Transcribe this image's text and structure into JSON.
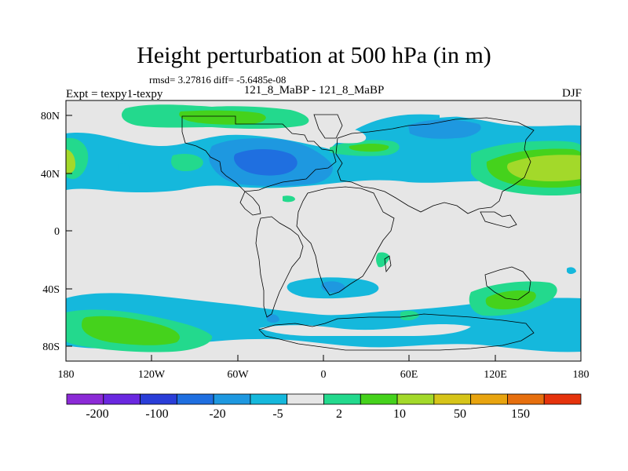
{
  "plot": {
    "title": "Height perturbation at 500 hPa (in m)",
    "stats_line": "rmsd= 3.27816 diff= -5.6485e-08",
    "left_label": "Expt = texpy1-texpy",
    "center_label": "121_8_MaBP - 121_8_MaBP",
    "right_label": "DJF"
  },
  "axes": {
    "lon_ticks": [
      "180",
      "120W",
      "60W",
      "0",
      "60E",
      "120E",
      "180"
    ],
    "lat_ticks": [
      "80N",
      "40N",
      "0",
      "40S",
      "80S"
    ]
  },
  "colorbar": {
    "labels": [
      "-200",
      "-100",
      "-20",
      "-5",
      "2",
      "10",
      "50",
      "150"
    ],
    "colors": [
      "#8b2ad6",
      "#6a28e0",
      "#2a3ed8",
      "#1f6fe0",
      "#1e98e0",
      "#15b8dc",
      "#e6e6e6",
      "#23d98d",
      "#45d21c",
      "#a3d92a",
      "#d6c419",
      "#e8a40f",
      "#e66f0e",
      "#e5330c"
    ]
  },
  "chart_data": {
    "type": "heatmap",
    "title": "Height perturbation at 500 hPa (in m)",
    "variable": "Height perturbation at 500 hPa",
    "units": "m",
    "season": "DJF",
    "experiment": "texpy1-texpy",
    "cases": "121_8_MaBP - 121_8_MaBP",
    "rmsd": 3.27816,
    "diff": -5.6485e-08,
    "xlim": [
      -180,
      180
    ],
    "ylim": [
      -90,
      90
    ],
    "contour_levels": [
      -200,
      -100,
      -20,
      -5,
      2,
      10,
      50,
      150
    ],
    "colormap": [
      "#8b2ad6",
      "#6a28e0",
      "#2a3ed8",
      "#1f6fe0",
      "#1e98e0",
      "#15b8dc",
      "#e6e6e6",
      "#23d98d",
      "#45d21c",
      "#a3d92a",
      "#d6c419",
      "#e8a40f",
      "#e66f0e",
      "#e5330c"
    ],
    "background_level_color": "#e6e6e6"
  }
}
